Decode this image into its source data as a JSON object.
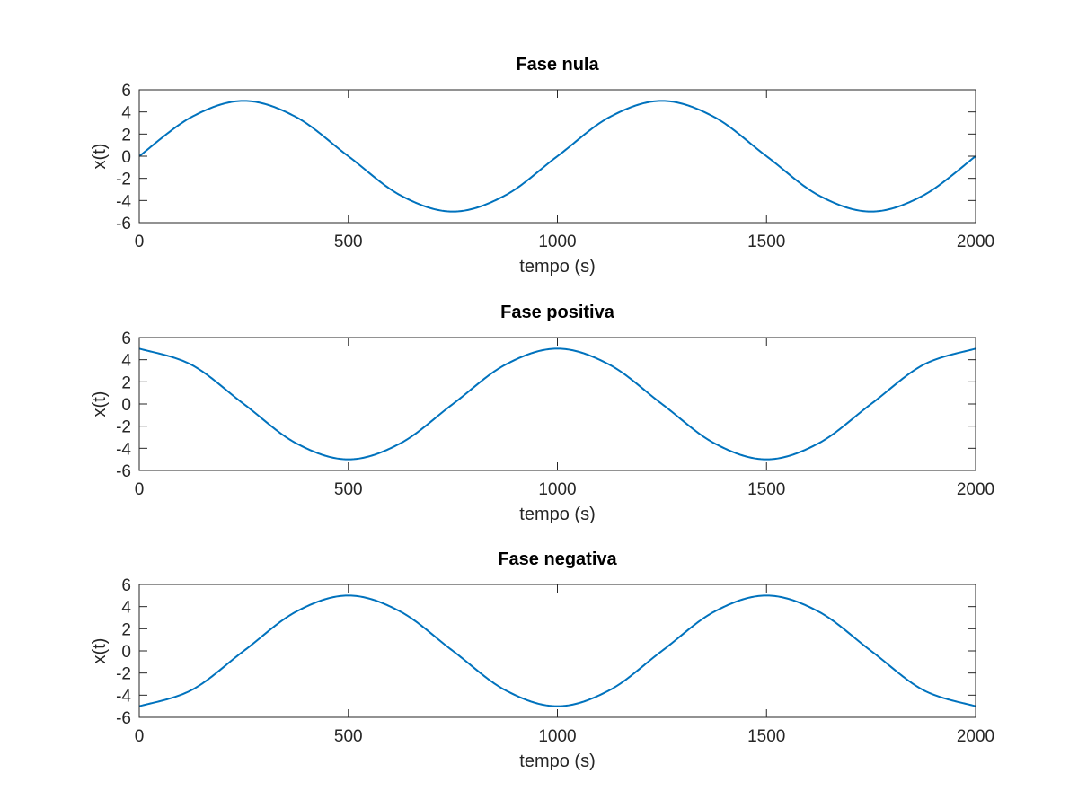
{
  "figure": {
    "line_color": "#0072bd",
    "axis_color": "#262626",
    "background": "#ffffff"
  },
  "chart_data": [
    {
      "type": "line",
      "title": "Fase nula",
      "xlabel": "tempo (s)",
      "ylabel": "x(t)",
      "xlim": [
        0,
        2000
      ],
      "ylim": [
        -6,
        6
      ],
      "xticks": [
        0,
        500,
        1000,
        1500,
        2000
      ],
      "yticks": [
        -6,
        -4,
        -2,
        0,
        2,
        4,
        6
      ],
      "grid": false,
      "series": [
        {
          "x": [
            0,
            125,
            250,
            375,
            500,
            625,
            750,
            875,
            1000,
            1125,
            1250,
            1375,
            1500,
            1625,
            1750,
            1875,
            2000
          ],
          "y": [
            0,
            3.54,
            5,
            3.54,
            0,
            -3.54,
            -5,
            -3.54,
            0,
            3.54,
            5,
            3.54,
            0,
            -3.54,
            -5,
            -3.54,
            0
          ]
        }
      ]
    },
    {
      "type": "line",
      "title": "Fase positiva",
      "xlabel": "tempo (s)",
      "ylabel": "x(t)",
      "xlim": [
        0,
        2000
      ],
      "ylim": [
        -6,
        6
      ],
      "xticks": [
        0,
        500,
        1000,
        1500,
        2000
      ],
      "yticks": [
        -6,
        -4,
        -2,
        0,
        2,
        4,
        6
      ],
      "grid": false,
      "series": [
        {
          "x": [
            0,
            125,
            250,
            375,
            500,
            625,
            750,
            875,
            1000,
            1125,
            1250,
            1375,
            1500,
            1625,
            1750,
            1875,
            2000
          ],
          "y": [
            5,
            3.54,
            0,
            -3.54,
            -5,
            -3.54,
            0,
            3.54,
            5,
            3.54,
            0,
            -3.54,
            -5,
            -3.54,
            0,
            3.54,
            5
          ]
        }
      ]
    },
    {
      "type": "line",
      "title": "Fase negativa",
      "xlabel": "tempo (s)",
      "ylabel": "x(t)",
      "xlim": [
        0,
        2000
      ],
      "ylim": [
        -6,
        6
      ],
      "xticks": [
        0,
        500,
        1000,
        1500,
        2000
      ],
      "yticks": [
        -6,
        -4,
        -2,
        0,
        2,
        4,
        6
      ],
      "grid": false,
      "series": [
        {
          "x": [
            0,
            125,
            250,
            375,
            500,
            625,
            750,
            875,
            1000,
            1125,
            1250,
            1375,
            1500,
            1625,
            1750,
            1875,
            2000
          ],
          "y": [
            -5,
            -3.54,
            0,
            3.54,
            5,
            3.54,
            0,
            -3.54,
            -5,
            -3.54,
            0,
            3.54,
            5,
            3.54,
            0,
            -3.54,
            -5
          ]
        }
      ]
    }
  ]
}
